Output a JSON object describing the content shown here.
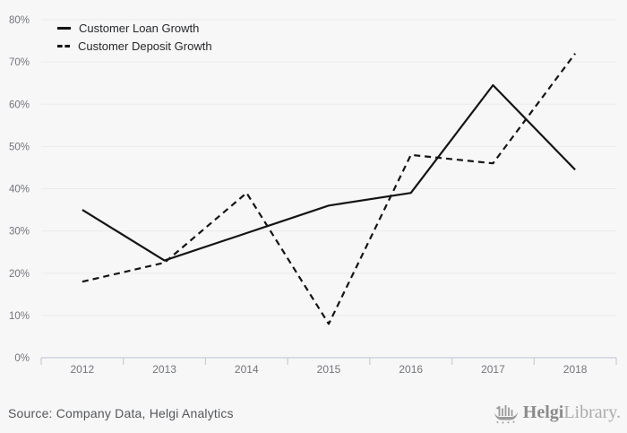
{
  "chart_data": {
    "type": "line",
    "title": "",
    "xlabel": "",
    "ylabel": "",
    "unit": "%",
    "categories": [
      "2012",
      "2013",
      "2014",
      "2015",
      "2016",
      "2017",
      "2018"
    ],
    "series": [
      {
        "name": "Customer Loan Growth",
        "line_style": "solid",
        "values": [
          35,
          23,
          29.5,
          36,
          39,
          64.5,
          44.5
        ]
      },
      {
        "name": "Customer Deposit Growth",
        "line_style": "dashed",
        "values": [
          18,
          22.5,
          39,
          8,
          48,
          46,
          72
        ]
      }
    ],
    "ylim": [
      0,
      80
    ],
    "yticks": [
      {
        "label": "0%",
        "value": 0
      },
      {
        "label": "10%",
        "value": 10
      },
      {
        "label": "20%",
        "value": 20
      },
      {
        "label": "30%",
        "value": 30
      },
      {
        "label": "40%",
        "value": 40
      },
      {
        "label": "50%",
        "value": 50
      },
      {
        "label": "60%",
        "value": 60
      },
      {
        "label": "70%",
        "value": 70
      },
      {
        "label": "80%",
        "value": 80
      }
    ],
    "grid": true,
    "legend_position": "top-left"
  },
  "legend": {
    "items": [
      {
        "label": "Customer Loan Growth",
        "swatch": "solid-line"
      },
      {
        "label": "Customer Deposit Growth",
        "swatch": "dashed-line"
      }
    ]
  },
  "footer": {
    "source": "Source: Company Data, Helgi Analytics",
    "logo": {
      "icon": "helgi-ship-icon",
      "brand_bold": "Helgi",
      "brand_light": "Library."
    }
  },
  "colors": {
    "background": "#f7f7f7",
    "line": "#141414",
    "grid": "#ebebeb",
    "axis": "#c6ccd8",
    "axis_text": "#73757d",
    "legend_text": "#26282b",
    "source_text": "#54565b",
    "logo_bold": "#8b8b8b",
    "logo_light": "#ababab",
    "logo_icon": "#9b9b9b"
  }
}
